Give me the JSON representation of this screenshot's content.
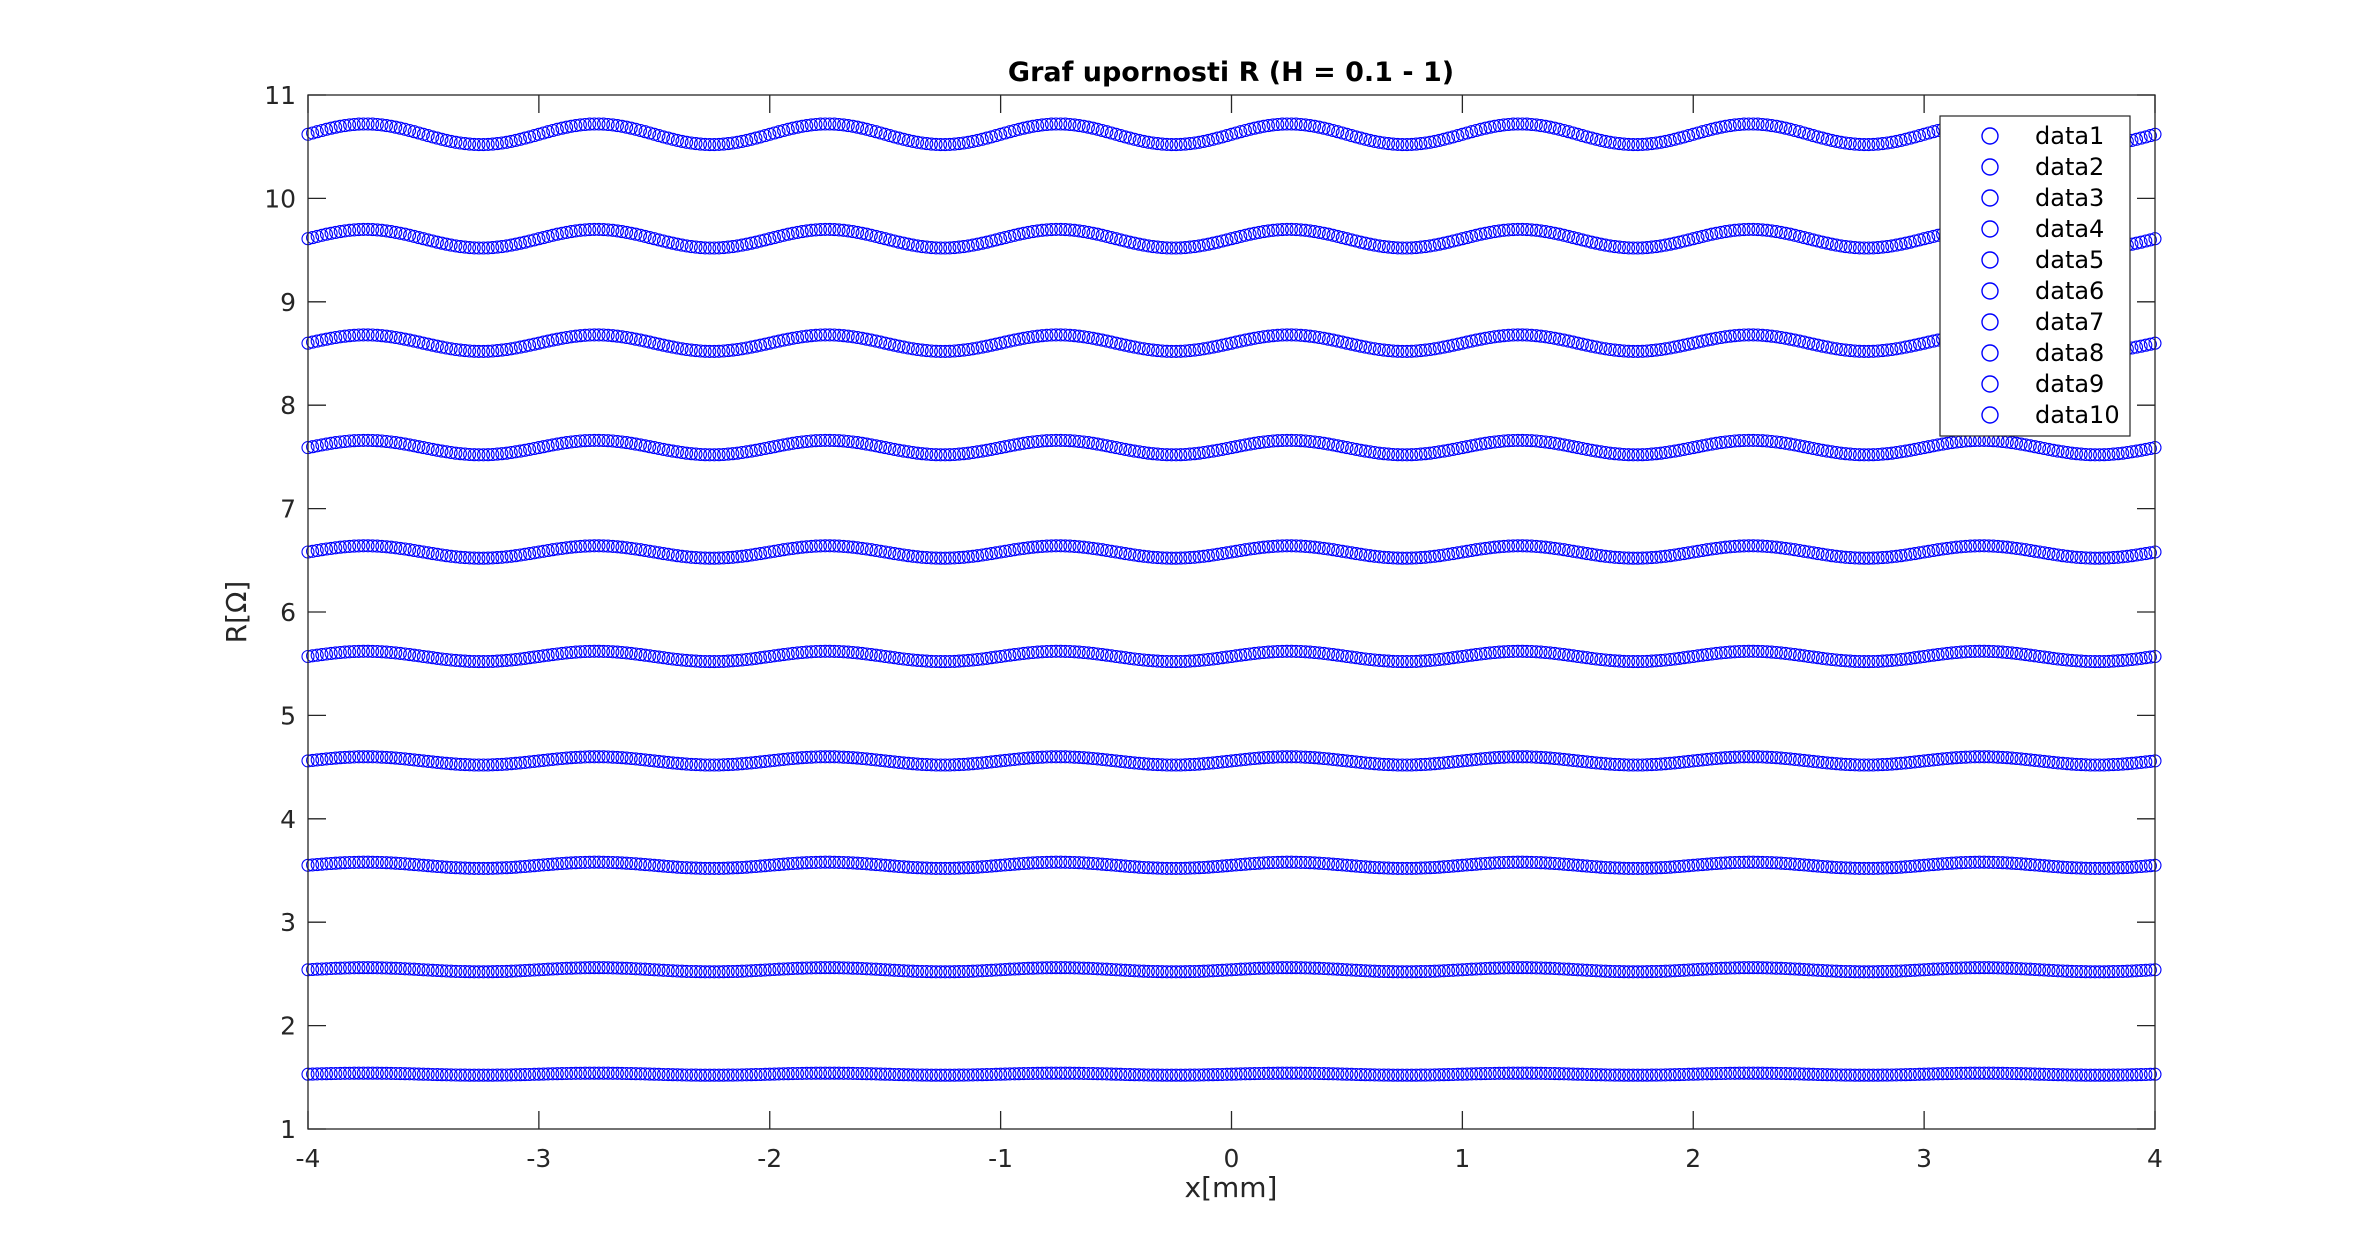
{
  "chart_data": {
    "type": "scatter",
    "title": "Graf upornosti R (H = 0.1 - 1)",
    "xlabel": "x[mm]",
    "ylabel": "R[Ω]",
    "xlim": [
      -4,
      4
    ],
    "ylim": [
      1,
      11
    ],
    "xticks": [
      -4,
      -3,
      -2,
      -1,
      0,
      1,
      2,
      3,
      4
    ],
    "yticks": [
      1,
      2,
      3,
      4,
      5,
      6,
      7,
      8,
      9,
      10,
      11
    ],
    "grid": false,
    "legend_position": "top-right",
    "marker": "circle",
    "marker_color": "#0000ff",
    "x_sampling": {
      "start": -4,
      "end": 4,
      "step": 0.02
    },
    "series": [
      {
        "name": "data1",
        "base": 1.53,
        "amplitude": 0.01,
        "period": 1
      },
      {
        "name": "data2",
        "base": 2.54,
        "amplitude": 0.02,
        "period": 1
      },
      {
        "name": "data3",
        "base": 3.55,
        "amplitude": 0.03,
        "period": 1
      },
      {
        "name": "data4",
        "base": 4.56,
        "amplitude": 0.04,
        "period": 1
      },
      {
        "name": "data5",
        "base": 5.57,
        "amplitude": 0.05,
        "period": 1
      },
      {
        "name": "data6",
        "base": 6.58,
        "amplitude": 0.06,
        "period": 1
      },
      {
        "name": "data7",
        "base": 7.59,
        "amplitude": 0.07,
        "period": 1
      },
      {
        "name": "data8",
        "base": 8.6,
        "amplitude": 0.08,
        "period": 1
      },
      {
        "name": "data9",
        "base": 9.61,
        "amplitude": 0.09,
        "period": 1
      },
      {
        "name": "data10",
        "base": 10.62,
        "amplitude": 0.1,
        "period": 1
      }
    ]
  }
}
